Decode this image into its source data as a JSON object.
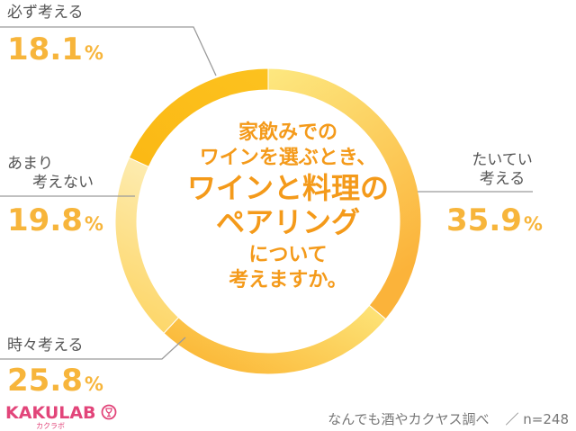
{
  "chart_data": {
    "type": "pie",
    "categories": [
      "たいてい考える",
      "時々考える",
      "あまり考えない",
      "必ず考える"
    ],
    "values": [
      35.9,
      25.8,
      19.8,
      18.1
    ],
    "unit": "%",
    "colors": [
      "#fcd65a",
      "#fcc749",
      "#fde27d",
      "#fbbd1a"
    ]
  },
  "labels": {
    "always": {
      "text": "必ず考える",
      "value": "18.1",
      "unit": "%"
    },
    "usually": {
      "line1": "たいてい",
      "line2": "考える",
      "value": "35.9",
      "unit": "%"
    },
    "rarely": {
      "line1": "あまり",
      "line2": "考えない",
      "value": "19.8",
      "unit": "%"
    },
    "sometimes": {
      "text": "時々考える",
      "value": "25.8",
      "unit": "%"
    }
  },
  "center": {
    "line1": "家飲みでの",
    "line2": "ワインを選ぶとき、",
    "line3": "ワインと料理の",
    "line4": "ペアリング",
    "line5": "について",
    "line6": "考えますか。"
  },
  "brand": {
    "name": "KAKULAB",
    "sub": "カクラボ"
  },
  "footer": {
    "source": "なんでも酒やカクヤス調べ",
    "sample": "／ n=248"
  }
}
